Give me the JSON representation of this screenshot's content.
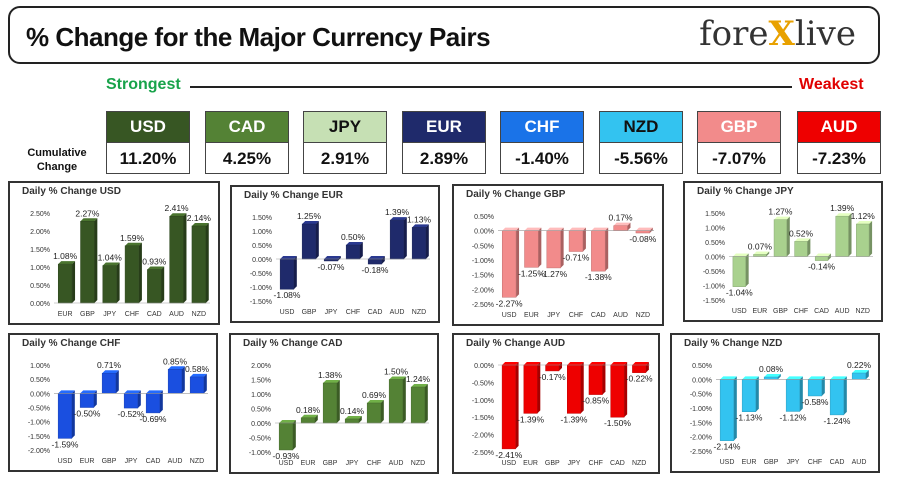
{
  "header": {
    "title": "% Change for the Major Currency Pairs",
    "logo_left": "fore",
    "logo_x": "X",
    "logo_right": "live"
  },
  "strongest_label": "Strongest",
  "weakest_label": "Weakest",
  "cumulative_label": "Cumulative Change",
  "cumulative": [
    {
      "name": "USD",
      "value": "11.20%",
      "bg": "#375623",
      "fg": "#ffffff"
    },
    {
      "name": "CAD",
      "value": "4.25%",
      "bg": "#548235",
      "fg": "#ffffff"
    },
    {
      "name": "JPY",
      "value": "2.91%",
      "bg": "#c6e0b4",
      "fg": "#111111"
    },
    {
      "name": "EUR",
      "value": "2.89%",
      "bg": "#1f2a6b",
      "fg": "#ffffff"
    },
    {
      "name": "CHF",
      "value": "-1.40%",
      "bg": "#1a73e8",
      "fg": "#ffffff"
    },
    {
      "name": "NZD",
      "value": "-5.56%",
      "bg": "#33c3f0",
      "fg": "#111111"
    },
    {
      "name": "GBP",
      "value": "-7.07%",
      "bg": "#f28b8b",
      "fg": "#ffffff"
    },
    {
      "name": "AUD",
      "value": "-7.23%",
      "bg": "#ee0000",
      "fg": "#ffffff"
    }
  ],
  "chart_data": [
    {
      "type": "bar",
      "title": "Daily % Change USD",
      "color": "#375623",
      "categories": [
        "EUR",
        "GBP",
        "JPY",
        "CHF",
        "CAD",
        "AUD",
        "NZD"
      ],
      "values": [
        1.08,
        2.27,
        1.04,
        1.59,
        0.93,
        2.41,
        2.14
      ],
      "value_labels": [
        "1.08%",
        "2.27%",
        "1.04%",
        "1.59%",
        "0.93%",
        "2.41%",
        "2.14%"
      ],
      "ylim": [
        0,
        2.5
      ],
      "yticks": [
        0,
        0.5,
        1.0,
        1.5,
        2.0,
        2.5
      ],
      "ytick_labels": [
        "0.00%",
        "0.50%",
        "1.00%",
        "1.50%",
        "2.00%",
        "2.50%"
      ]
    },
    {
      "type": "bar",
      "title": "Daily % Change EUR",
      "color": "#1f2a6b",
      "categories": [
        "USD",
        "GBP",
        "JPY",
        "CHF",
        "CAD",
        "AUD",
        "NZD"
      ],
      "values": [
        -1.08,
        1.25,
        -0.07,
        0.5,
        -0.18,
        1.39,
        1.13
      ],
      "value_labels": [
        "-1.08%",
        "1.25%",
        "-0.07%",
        "0.50%",
        "-0.18%",
        "1.39%",
        "1.13%"
      ],
      "ylim": [
        -1.5,
        1.5
      ],
      "yticks": [
        -1.5,
        -1.0,
        -0.5,
        0,
        0.5,
        1.0,
        1.5
      ],
      "ytick_labels": [
        "-1.50%",
        "-1.00%",
        "-0.50%",
        "0.00%",
        "0.50%",
        "1.00%",
        "1.50%"
      ]
    },
    {
      "type": "bar",
      "title": "Daily % Change GBP",
      "color": "#f28b8b",
      "categories": [
        "USD",
        "EUR",
        "JPY",
        "CHF",
        "CAD",
        "AUD",
        "NZD"
      ],
      "values": [
        -2.27,
        -1.25,
        -1.27,
        -0.71,
        -1.38,
        0.17,
        -0.08
      ],
      "value_labels": [
        "-2.27%",
        "-1.25%",
        "-1.27%",
        "-0.71%",
        "-1.38%",
        "0.17%",
        "-0.08%"
      ],
      "ylim": [
        -2.5,
        0.5
      ],
      "yticks": [
        -2.5,
        -2.0,
        -1.5,
        -1.0,
        -0.5,
        0,
        0.5
      ],
      "ytick_labels": [
        "-2.50%",
        "-2.00%",
        "-1.50%",
        "-1.00%",
        "-0.50%",
        "0.00%",
        "0.50%"
      ]
    },
    {
      "type": "bar",
      "title": "Daily % Change JPY",
      "color": "#a9d18e",
      "categories": [
        "USD",
        "EUR",
        "GBP",
        "CHF",
        "CAD",
        "AUD",
        "NZD"
      ],
      "values": [
        -1.04,
        0.07,
        1.27,
        0.52,
        -0.14,
        1.39,
        1.12
      ],
      "value_labels": [
        "-1.04%",
        "0.07%",
        "1.27%",
        "0.52%",
        "-0.14%",
        "1.39%",
        "1.12%"
      ],
      "ylim": [
        -1.5,
        1.5
      ],
      "yticks": [
        -1.5,
        -1.0,
        -0.5,
        0,
        0.5,
        1.0,
        1.5
      ],
      "ytick_labels": [
        "-1.50%",
        "-1.00%",
        "-0.50%",
        "0.00%",
        "0.50%",
        "1.00%",
        "1.50%"
      ]
    },
    {
      "type": "bar",
      "title": "Daily % Change CHF",
      "color": "#1a4fe0",
      "categories": [
        "USD",
        "EUR",
        "GBP",
        "JPY",
        "CAD",
        "AUD",
        "NZD"
      ],
      "values": [
        -1.59,
        -0.5,
        0.71,
        -0.52,
        -0.69,
        0.85,
        0.58
      ],
      "value_labels": [
        "-1.59%",
        "-0.50%",
        "0.71%",
        "-0.52%",
        "-0.69%",
        "0.85%",
        "0.58%"
      ],
      "ylim": [
        -2.0,
        1.0
      ],
      "yticks": [
        -2.0,
        -1.5,
        -1.0,
        -0.5,
        0,
        0.5,
        1.0
      ],
      "ytick_labels": [
        "-2.00%",
        "-1.50%",
        "-1.00%",
        "-0.50%",
        "0.00%",
        "0.50%",
        "1.00%"
      ]
    },
    {
      "type": "bar",
      "title": "Daily % Change CAD",
      "color": "#548235",
      "categories": [
        "USD",
        "EUR",
        "GBP",
        "JPY",
        "CHF",
        "AUD",
        "NZD"
      ],
      "values": [
        -0.93,
        0.18,
        1.38,
        0.14,
        0.69,
        1.5,
        1.24
      ],
      "value_labels": [
        "-0.93%",
        "0.18%",
        "1.38%",
        "0.14%",
        "0.69%",
        "1.50%",
        "1.24%"
      ],
      "ylim": [
        -1.0,
        2.0
      ],
      "yticks": [
        -1.0,
        -0.5,
        0,
        0.5,
        1.0,
        1.5,
        2.0
      ],
      "ytick_labels": [
        "-1.00%",
        "-0.50%",
        "0.00%",
        "0.50%",
        "1.00%",
        "1.50%",
        "2.00%"
      ]
    },
    {
      "type": "bar",
      "title": "Daily % Change AUD",
      "color": "#ee0000",
      "categories": [
        "USD",
        "EUR",
        "GBP",
        "JPY",
        "CHF",
        "CAD",
        "NZD"
      ],
      "values": [
        -2.41,
        -1.39,
        -0.17,
        -1.39,
        -0.85,
        -1.5,
        -0.22
      ],
      "value_labels": [
        "-2.41%",
        "-1.39%",
        "-0.17%",
        "-1.39%",
        "-0.85%",
        "-1.50%",
        "-0.22%"
      ],
      "ylim": [
        -2.5,
        0
      ],
      "yticks": [
        -2.5,
        -2.0,
        -1.5,
        -1.0,
        -0.5,
        0
      ],
      "ytick_labels": [
        "-2.50%",
        "-2.00%",
        "-1.50%",
        "-1.00%",
        "-0.50%",
        "0.00%"
      ]
    },
    {
      "type": "bar",
      "title": "Daily % Change NZD",
      "color": "#33c3f0",
      "categories": [
        "USD",
        "EUR",
        "GBP",
        "JPY",
        "CHF",
        "CAD",
        "AUD"
      ],
      "values": [
        -2.14,
        -1.13,
        0.08,
        -1.12,
        -0.58,
        -1.24,
        0.22
      ],
      "value_labels": [
        "-2.14%",
        "-1.13%",
        "0.08%",
        "-1.12%",
        "-0.58%",
        "-1.24%",
        "0.22%"
      ],
      "ylim": [
        -2.5,
        0.5
      ],
      "yticks": [
        -2.5,
        -2.0,
        -1.5,
        -1.0,
        -0.5,
        0,
        0.5
      ],
      "ytick_labels": [
        "-2.50%",
        "-2.00%",
        "-1.50%",
        "-1.00%",
        "-0.50%",
        "0.00%",
        "0.50%"
      ]
    }
  ]
}
